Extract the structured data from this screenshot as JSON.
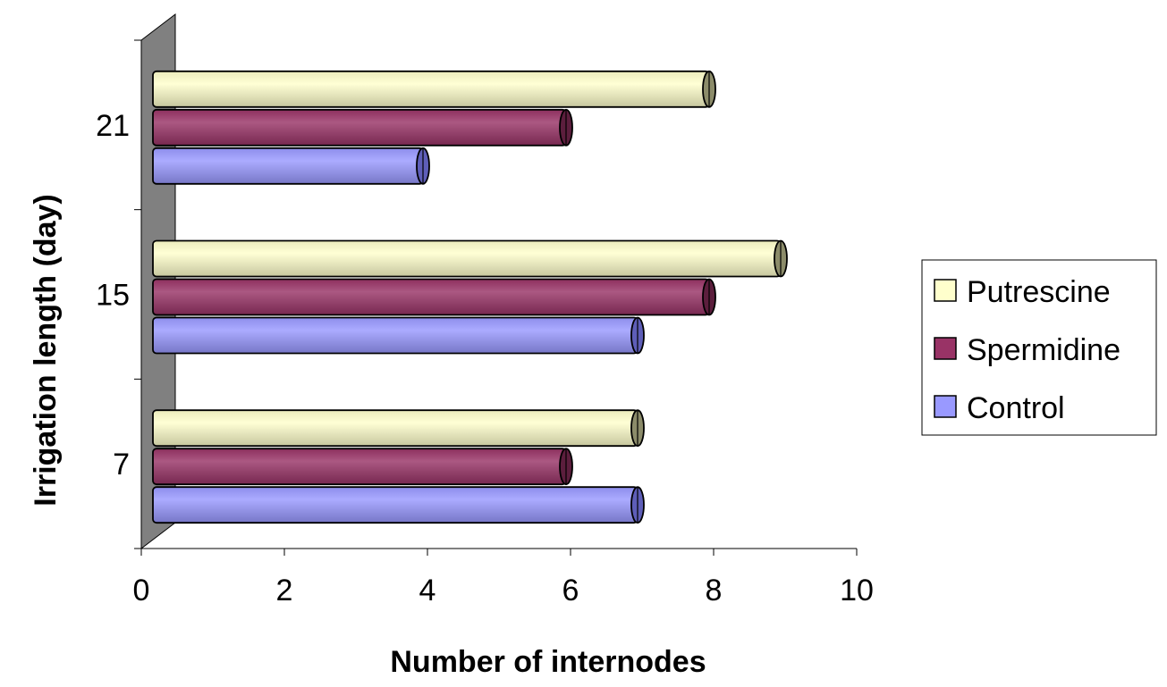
{
  "chart_data": {
    "type": "bar",
    "orientation": "horizontal",
    "title": "",
    "xlabel": "Number of internodes",
    "ylabel": "Irrigation length (day)",
    "xlim": [
      0,
      10
    ],
    "x_ticks": [
      "0",
      "2",
      "4",
      "6",
      "8",
      "10"
    ],
    "x_tick_values": [
      0,
      2,
      4,
      6,
      8,
      10
    ],
    "categories": [
      "7",
      "15",
      "21"
    ],
    "series": [
      {
        "name": "Control",
        "values": [
          7,
          7,
          4
        ],
        "color": "#9999FF",
        "dark": "#5E5EB8"
      },
      {
        "name": "Spermidine",
        "values": [
          6,
          8,
          6
        ],
        "color": "#993366",
        "dark": "#5C1E3D"
      },
      {
        "name": "Putrescine",
        "values": [
          7,
          9,
          8
        ],
        "color": "#FFFFCC",
        "dark": "#8C8C6A"
      }
    ],
    "legend": [
      "Putrescine",
      "Spermidine",
      "Control"
    ],
    "legend_position": "right",
    "grid": false
  }
}
